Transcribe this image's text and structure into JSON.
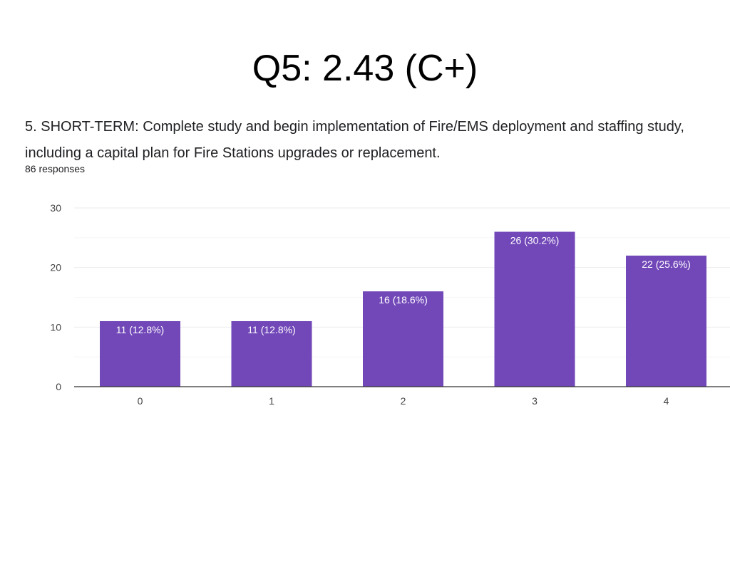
{
  "title": "Q5: 2.43 (C+)",
  "question": "5. SHORT-TERM: Complete study and begin implementation of Fire/EMS deployment and staffing study, including a capital plan for Fire Stations upgrades or replacement.",
  "responses": "86 responses",
  "chart_data": {
    "type": "bar",
    "categories": [
      "0",
      "1",
      "2",
      "3",
      "4"
    ],
    "values": [
      11,
      11,
      16,
      26,
      22
    ],
    "labels": [
      "11 (12.8%)",
      "11 (12.8%)",
      "16 (18.6%)",
      "26 (30.2%)",
      "22 (25.6%)"
    ],
    "yticks": [
      "0",
      "10",
      "20",
      "30"
    ],
    "ylim": [
      0,
      30
    ],
    "grid": true,
    "bar_color": "#7248b9",
    "xlabel": "",
    "ylabel": ""
  }
}
